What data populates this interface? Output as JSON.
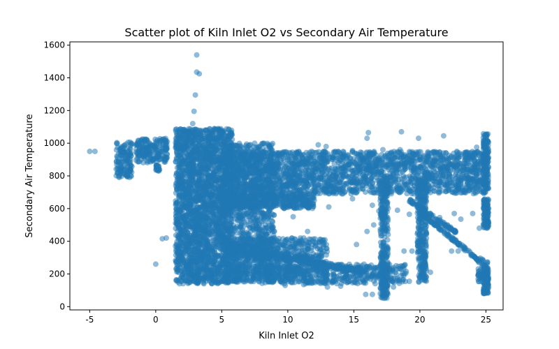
{
  "chart_data": {
    "type": "scatter",
    "title": "Scatter plot of Kiln Inlet O2 vs Secondary Air Temperature",
    "xlabel": "Kiln Inlet O2",
    "ylabel": "Secondary Air Temperature",
    "xlim": [
      -6.5,
      26.3
    ],
    "ylim": [
      -20,
      1620
    ],
    "xticks": [
      -5,
      0,
      5,
      10,
      15,
      20,
      25
    ],
    "yticks": [
      0,
      200,
      400,
      600,
      800,
      1000,
      1200,
      1400,
      1600
    ],
    "grid": false,
    "legend": "none",
    "color": "#1f77b4",
    "alpha": 0.5,
    "outliers": [
      {
        "x": -5.0,
        "y": 950
      },
      {
        "x": -4.6,
        "y": 950
      },
      {
        "x": 3.1,
        "y": 1540
      },
      {
        "x": 3.1,
        "y": 1435
      },
      {
        "x": 3.3,
        "y": 1425
      },
      {
        "x": 3.0,
        "y": 1295
      },
      {
        "x": 2.9,
        "y": 1195
      },
      {
        "x": 2.8,
        "y": 1120
      },
      {
        "x": 0.0,
        "y": 260
      },
      {
        "x": 0.5,
        "y": 415
      },
      {
        "x": 0.8,
        "y": 420
      },
      {
        "x": 16.1,
        "y": 1065
      },
      {
        "x": 18.6,
        "y": 1070
      },
      {
        "x": 21.8,
        "y": 1045
      },
      {
        "x": 19.9,
        "y": 1030
      },
      {
        "x": 16.0,
        "y": 1030
      },
      {
        "x": 12.3,
        "y": 990
      },
      {
        "x": 12.9,
        "y": 980
      },
      {
        "x": 11.8,
        "y": 950
      },
      {
        "x": 14.9,
        "y": 955
      },
      {
        "x": 13.6,
        "y": 945
      },
      {
        "x": 15.5,
        "y": 945
      },
      {
        "x": 17.2,
        "y": 960
      },
      {
        "x": 18.5,
        "y": 960
      },
      {
        "x": 20.6,
        "y": 940
      },
      {
        "x": 21.5,
        "y": 945
      },
      {
        "x": 22.8,
        "y": 950
      },
      {
        "x": 23.6,
        "y": 945
      },
      {
        "x": 24.3,
        "y": 975
      },
      {
        "x": 9.8,
        "y": 130
      },
      {
        "x": 11.2,
        "y": 135
      },
      {
        "x": 13.0,
        "y": 120
      },
      {
        "x": 14.0,
        "y": 125
      },
      {
        "x": 15.9,
        "y": 75
      },
      {
        "x": 16.4,
        "y": 75
      },
      {
        "x": 17.0,
        "y": 80
      },
      {
        "x": 18.0,
        "y": 120
      },
      {
        "x": 19.2,
        "y": 155
      },
      {
        "x": 11.4,
        "y": 720
      },
      {
        "x": 12.0,
        "y": 650
      },
      {
        "x": 13.1,
        "y": 610
      },
      {
        "x": 14.1,
        "y": 690
      },
      {
        "x": 14.9,
        "y": 660
      },
      {
        "x": 16.4,
        "y": 620
      },
      {
        "x": 16.9,
        "y": 585
      },
      {
        "x": 18.3,
        "y": 590
      },
      {
        "x": 19.2,
        "y": 565
      },
      {
        "x": 21.5,
        "y": 545
      },
      {
        "x": 22.6,
        "y": 570
      },
      {
        "x": 24.0,
        "y": 570
      },
      {
        "x": 24.5,
        "y": 480
      },
      {
        "x": 23.1,
        "y": 535
      },
      {
        "x": 16.0,
        "y": 460
      },
      {
        "x": 16.5,
        "y": 500
      },
      {
        "x": 15.2,
        "y": 380
      },
      {
        "x": 18.2,
        "y": 250
      },
      {
        "x": 18.8,
        "y": 340
      },
      {
        "x": 19.4,
        "y": 340
      },
      {
        "x": 20.8,
        "y": 210
      },
      {
        "x": 22.4,
        "y": 340
      },
      {
        "x": 22.9,
        "y": 340
      },
      {
        "x": 13.4,
        "y": 160
      },
      {
        "x": 9.2,
        "y": 620
      },
      {
        "x": 8.6,
        "y": 590
      },
      {
        "x": 10.4,
        "y": 550
      },
      {
        "x": 8.0,
        "y": 470
      },
      {
        "x": 11.5,
        "y": 460
      },
      {
        "x": 12.5,
        "y": 410
      }
    ]
  }
}
